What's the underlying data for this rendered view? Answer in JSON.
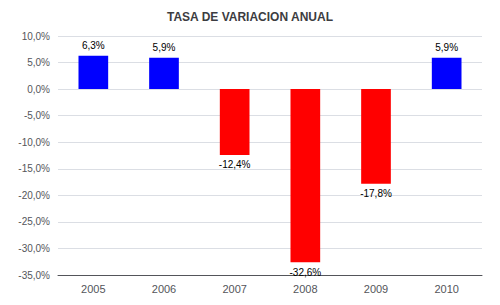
{
  "chart_data": {
    "type": "bar",
    "title": "TASA DE VARIACION ANUAL",
    "categories": [
      "2005",
      "2006",
      "2007",
      "2008",
      "2009",
      "2010"
    ],
    "values": [
      6.3,
      5.9,
      -12.4,
      -32.6,
      -17.8,
      5.9
    ],
    "value_labels": [
      "6,3%",
      "5,9%",
      "-12,4%",
      "-32,6%",
      "-17,8%",
      "5,9%"
    ],
    "colors": [
      "#0000FF",
      "#0000FF",
      "#FF0000",
      "#FF0000",
      "#FF0000",
      "#0000FF"
    ],
    "ylim": [
      -35.0,
      10.0
    ],
    "yticks": [
      {
        "value": 10.0,
        "label": "10,0%"
      },
      {
        "value": 5.0,
        "label": "5,0%"
      },
      {
        "value": 0.0,
        "label": "0,0%"
      },
      {
        "value": -5.0,
        "label": "-5,0%"
      },
      {
        "value": -10.0,
        "label": "-10,0%"
      },
      {
        "value": -15.0,
        "label": "-15,0%"
      },
      {
        "value": -20.0,
        "label": "-20,0%"
      },
      {
        "value": -25.0,
        "label": "-25,0%"
      },
      {
        "value": -30.0,
        "label": "-30,0%"
      },
      {
        "value": -35.0,
        "label": "-35,0%"
      }
    ],
    "grid": true
  }
}
